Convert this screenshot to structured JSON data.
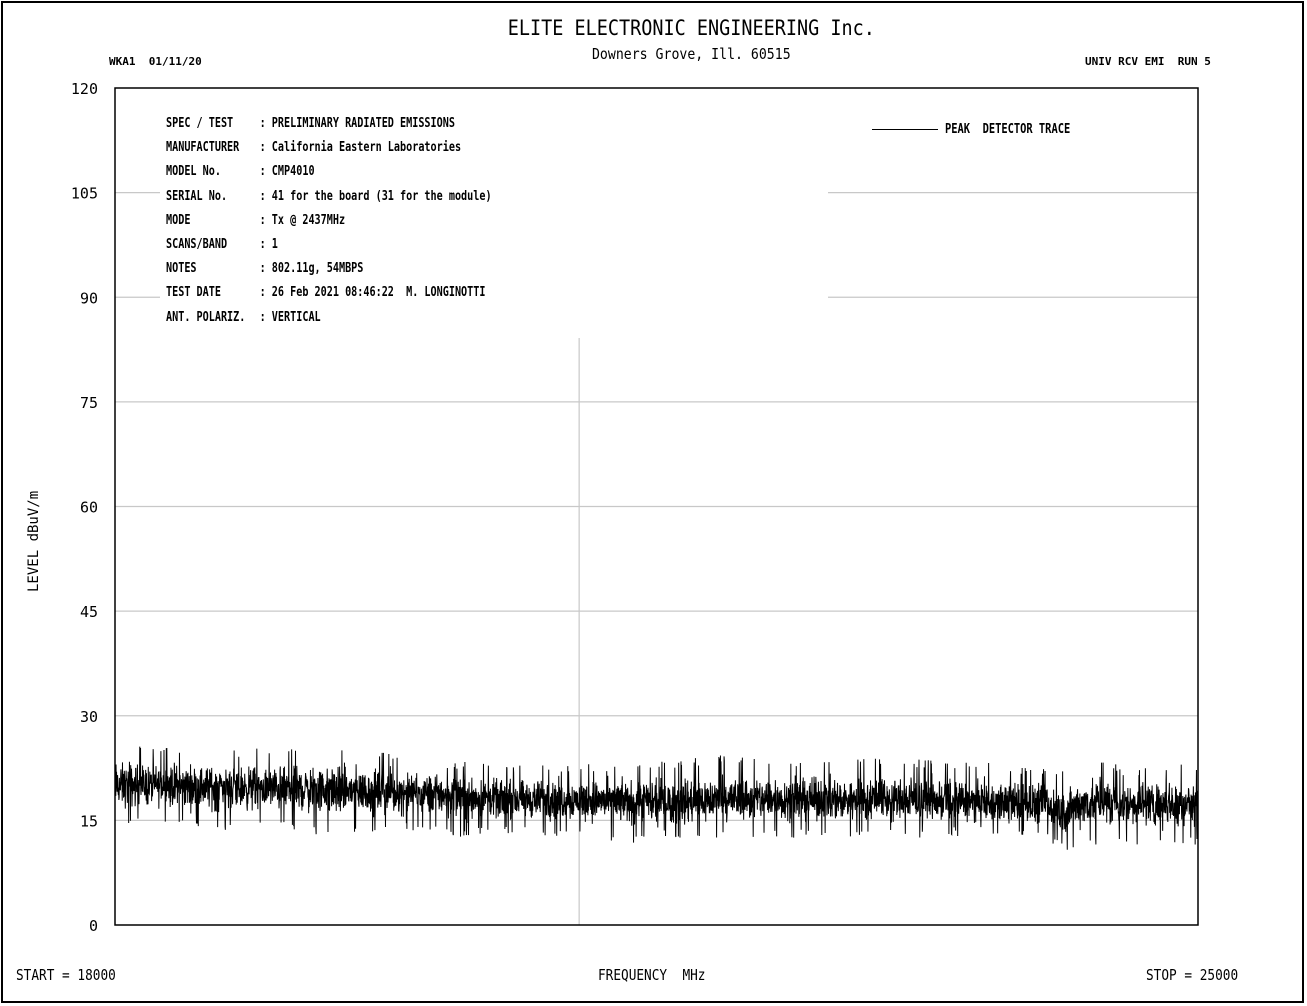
{
  "header": {
    "title": "ELITE ELECTRONIC ENGINEERING Inc.",
    "subtitle": "Downers Grove, Ill. 60515",
    "left_code": "WKA1  01/11/20",
    "right_code": "UNIV RCV EMI  RUN 5"
  },
  "info": [
    {
      "key": "SPEC / TEST",
      "value": ": PRELIMINARY RADIATED EMISSIONS"
    },
    {
      "key": "MANUFACTURER",
      "value": ": California Eastern Laboratories"
    },
    {
      "key": "MODEL No.",
      "value": ": CMP4010"
    },
    {
      "key": "SERIAL No.",
      "value": ": 41 for the board (31 for the module)"
    },
    {
      "key": "MODE",
      "value": ": Tx @ 2437MHz"
    },
    {
      "key": "SCANS/BAND",
      "value": ": 1"
    },
    {
      "key": "NOTES",
      "value": ": 802.11g, 54MBPS"
    },
    {
      "key": "TEST DATE",
      "value": ": 26 Feb 2021 08:46:22  M. LONGINOTTI"
    },
    {
      "key": "ANT. POLARIZ.",
      "value": ": VERTICAL"
    }
  ],
  "footer": {
    "start": "START = 18000",
    "xlabel": "FREQUENCY  MHz",
    "stop": "STOP = 25000"
  },
  "colors": {
    "grid": "#c8c8c8",
    "trace": "#000000",
    "axis": "#000000"
  },
  "chart_data": {
    "type": "line",
    "title": "ELITE ELECTRONIC ENGINEERING Inc.",
    "ylabel": "LEVEL dBuV/m",
    "xlabel": "FREQUENCY  MHz",
    "xlim": [
      18000,
      25000
    ],
    "ylim": [
      0,
      120
    ],
    "yticks": [
      "120",
      "105",
      "90",
      "75",
      "60",
      "45",
      "30",
      "15",
      "0"
    ],
    "ytick_values": [
      120,
      105,
      90,
      75,
      60,
      45,
      30,
      15,
      0
    ],
    "grid": true,
    "legend": "top-right",
    "series": [
      {
        "name": "PEAK  DETECTOR TRACE",
        "envelope_x": [
          18000,
          18300,
          18700,
          19000,
          19400,
          19700,
          20000,
          20235,
          20500,
          21000,
          21500,
          22000,
          22500,
          23000,
          23500,
          23800,
          24000,
          24150,
          24250,
          24500,
          25000
        ],
        "envelope_max": [
          26.0,
          25.5,
          25.0,
          25.5,
          25.5,
          25.0,
          24.0,
          23.5,
          23.0,
          23.0,
          23.5,
          24.5,
          23.5,
          24.0,
          23.5,
          23.0,
          22.5,
          22.5,
          24.0,
          23.0,
          23.0
        ],
        "envelope_min": [
          14.0,
          14.5,
          13.0,
          14.0,
          12.5,
          13.5,
          13.5,
          12.5,
          13.0,
          12.5,
          11.5,
          12.5,
          12.5,
          12.5,
          12.5,
          12.5,
          12.5,
          10.0,
          11.5,
          11.5,
          11.5
        ],
        "envelope_mean": [
          20.0,
          20.0,
          20.0,
          19.5,
          19.5,
          19.0,
          19.0,
          18.5,
          18.0,
          18.0,
          17.5,
          18.0,
          18.0,
          18.0,
          17.5,
          17.5,
          17.0,
          16.0,
          17.5,
          17.5,
          17.5
        ]
      }
    ]
  }
}
